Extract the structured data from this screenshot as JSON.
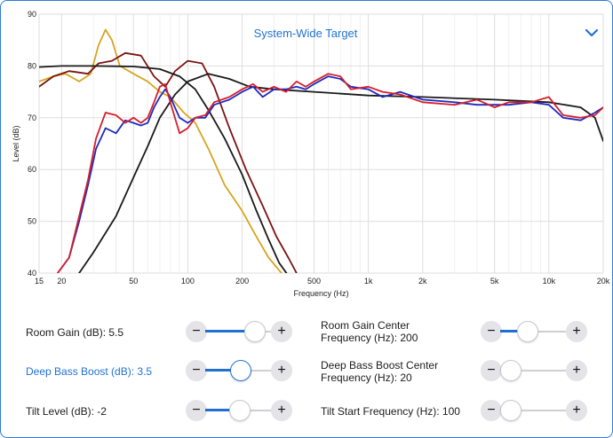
{
  "header": {
    "title": "System-Wide Target",
    "dropdown_icon": "chevron-down-icon",
    "accent_color": "#2273d4"
  },
  "chart_data": {
    "type": "line",
    "x_scale": "log",
    "xlabel": "Frequency (Hz)",
    "ylabel": "Level (dB)",
    "xlim": [
      15,
      20000
    ],
    "ylim": [
      40,
      90
    ],
    "x_ticks": [
      15,
      20,
      50,
      100,
      200,
      500,
      1000,
      2000,
      5000,
      10000,
      20000
    ],
    "x_tick_labels": [
      "15",
      "20",
      "50",
      "100",
      "200",
      "500",
      "1k",
      "2k",
      "5k",
      "10k",
      "20k"
    ],
    "y_ticks": [
      40,
      50,
      60,
      70,
      80,
      90
    ],
    "y_tick_labels": [
      "40",
      "50",
      "60",
      "70",
      "80",
      "90"
    ],
    "grid": true,
    "series": [
      {
        "color": "#d6a520",
        "points": [
          [
            15,
            77
          ],
          [
            18,
            78
          ],
          [
            21,
            78.5
          ],
          [
            25,
            77
          ],
          [
            29,
            78.5
          ],
          [
            32,
            84
          ],
          [
            35,
            87
          ],
          [
            38,
            85
          ],
          [
            42,
            80
          ],
          [
            50,
            78.5
          ],
          [
            60,
            77
          ],
          [
            70,
            75
          ],
          [
            80,
            74
          ],
          [
            95,
            71
          ],
          [
            110,
            69
          ],
          [
            130,
            64
          ],
          [
            160,
            57
          ],
          [
            200,
            52
          ],
          [
            240,
            47
          ],
          [
            280,
            43
          ],
          [
            330,
            40
          ]
        ]
      },
      {
        "color": "#7a1414",
        "points": [
          [
            15,
            76
          ],
          [
            18,
            78
          ],
          [
            22,
            79
          ],
          [
            28,
            78.5
          ],
          [
            32,
            80.5
          ],
          [
            38,
            81
          ],
          [
            45,
            82.5
          ],
          [
            55,
            82
          ],
          [
            65,
            78
          ],
          [
            75,
            76
          ],
          [
            85,
            79
          ],
          [
            100,
            81
          ],
          [
            120,
            80.5
          ],
          [
            140,
            76
          ],
          [
            170,
            68
          ],
          [
            210,
            60
          ],
          [
            260,
            53
          ],
          [
            310,
            47
          ],
          [
            360,
            43
          ],
          [
            400,
            40
          ]
        ]
      },
      {
        "color": "#1a1a1a",
        "points": [
          [
            15,
            79.8
          ],
          [
            20,
            80
          ],
          [
            30,
            80
          ],
          [
            50,
            79.9
          ],
          [
            70,
            79.4
          ],
          [
            90,
            78
          ],
          [
            110,
            75.5
          ],
          [
            130,
            71.5
          ],
          [
            160,
            66
          ],
          [
            200,
            59
          ],
          [
            240,
            52
          ],
          [
            280,
            46.5
          ],
          [
            320,
            42
          ],
          [
            360,
            39.5
          ]
        ]
      },
      {
        "color": "#1a1a1a",
        "points": [
          [
            25,
            40
          ],
          [
            30,
            44
          ],
          [
            40,
            51
          ],
          [
            50,
            58.5
          ],
          [
            60,
            64.5
          ],
          [
            70,
            70
          ],
          [
            85,
            74.5
          ],
          [
            100,
            77
          ],
          [
            130,
            78.5
          ],
          [
            170,
            77.5
          ],
          [
            220,
            76
          ],
          [
            300,
            75.5
          ],
          [
            500,
            75
          ],
          [
            1000,
            74.3
          ],
          [
            2000,
            74
          ],
          [
            5000,
            73.5
          ],
          [
            10000,
            73
          ],
          [
            15000,
            72
          ],
          [
            18000,
            70
          ],
          [
            20000,
            65.5
          ]
        ]
      },
      {
        "color": "#1f2bc0",
        "points": [
          [
            19,
            40
          ],
          [
            22,
            43
          ],
          [
            25,
            50
          ],
          [
            28,
            57
          ],
          [
            31,
            64
          ],
          [
            35,
            68
          ],
          [
            40,
            67
          ],
          [
            45,
            69.5
          ],
          [
            50,
            69
          ],
          [
            55,
            68.5
          ],
          [
            60,
            69
          ],
          [
            65,
            72
          ],
          [
            70,
            74
          ],
          [
            75,
            75.5
          ],
          [
            80,
            74
          ],
          [
            90,
            70
          ],
          [
            100,
            69
          ],
          [
            110,
            70
          ],
          [
            125,
            70
          ],
          [
            140,
            72.5
          ],
          [
            170,
            73.5
          ],
          [
            200,
            75
          ],
          [
            230,
            76
          ],
          [
            260,
            74
          ],
          [
            300,
            75.5
          ],
          [
            350,
            75.5
          ],
          [
            400,
            76
          ],
          [
            450,
            75.5
          ],
          [
            500,
            76.5
          ],
          [
            600,
            78
          ],
          [
            700,
            77.5
          ],
          [
            800,
            76
          ],
          [
            1000,
            75.5
          ],
          [
            1200,
            74
          ],
          [
            1500,
            75
          ],
          [
            2000,
            73.5
          ],
          [
            3000,
            73
          ],
          [
            4000,
            72.5
          ],
          [
            5000,
            72.5
          ],
          [
            6000,
            72.5
          ],
          [
            8000,
            73
          ],
          [
            10000,
            72.5
          ],
          [
            12000,
            70
          ],
          [
            15000,
            69.5
          ],
          [
            18000,
            71
          ],
          [
            20000,
            72
          ]
        ]
      },
      {
        "color": "#d41f2b",
        "points": [
          [
            19,
            40
          ],
          [
            22,
            43
          ],
          [
            25,
            51
          ],
          [
            28,
            58
          ],
          [
            31,
            66
          ],
          [
            35,
            71
          ],
          [
            40,
            70.5
          ],
          [
            45,
            69
          ],
          [
            50,
            70
          ],
          [
            55,
            69
          ],
          [
            60,
            70
          ],
          [
            65,
            73
          ],
          [
            70,
            76
          ],
          [
            75,
            76.5
          ],
          [
            80,
            73
          ],
          [
            90,
            67
          ],
          [
            100,
            68
          ],
          [
            110,
            70
          ],
          [
            125,
            70.5
          ],
          [
            140,
            73
          ],
          [
            170,
            74
          ],
          [
            200,
            75.5
          ],
          [
            230,
            76.5
          ],
          [
            260,
            75
          ],
          [
            300,
            76
          ],
          [
            350,
            75
          ],
          [
            400,
            77
          ],
          [
            450,
            76
          ],
          [
            500,
            77
          ],
          [
            600,
            78.5
          ],
          [
            700,
            78
          ],
          [
            800,
            75.5
          ],
          [
            1000,
            76
          ],
          [
            1200,
            75
          ],
          [
            1500,
            74.5
          ],
          [
            2000,
            73
          ],
          [
            3000,
            72.5
          ],
          [
            4000,
            73.5
          ],
          [
            5000,
            72
          ],
          [
            6000,
            73
          ],
          [
            8000,
            73
          ],
          [
            10000,
            74
          ],
          [
            12000,
            70.5
          ],
          [
            15000,
            70
          ],
          [
            18000,
            70.5
          ],
          [
            20000,
            72
          ]
        ]
      }
    ]
  },
  "controls": [
    {
      "label": "Room Gain (dB): 5.5",
      "value": 5.5,
      "fraction": 0.82,
      "active": false
    },
    {
      "label": "Room Gain Center Frequency (Hz): 200",
      "label_lines": [
        "Room Gain Center",
        "Frequency (Hz): 200"
      ],
      "value": 200,
      "fraction": 0.36,
      "active": false
    },
    {
      "label": "Deep Bass Boost (dB): 3.5",
      "value": 3.5,
      "fraction": 0.52,
      "active": true
    },
    {
      "label": "Deep Bass Boost Center Frequency (Hz): 20",
      "label_lines": [
        "Deep Bass Boost Center",
        "Frequency (Hz): 20"
      ],
      "value": 20,
      "fraction": 0.0,
      "active": false
    },
    {
      "label": "Tilt Level (dB): -2",
      "value": -2,
      "fraction": 0.5,
      "active": false
    },
    {
      "label": "Tilt Start Frequency (Hz): 100",
      "value": 100,
      "fraction": 0.0,
      "active": false
    }
  ],
  "buttons": {
    "minus": "−",
    "plus": "+"
  }
}
